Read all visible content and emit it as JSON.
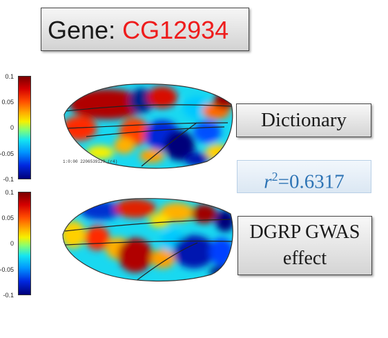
{
  "title": {
    "prefix": "Gene: ",
    "gene_id": "CG12934"
  },
  "labels": {
    "dictionary": "Dictionary",
    "r2_symbol": "r",
    "r2_exp": "2",
    "r2_value": "=0.6317",
    "gwas_line1": "DGRP GWAS",
    "gwas_line2": "effect"
  },
  "colorbar_top": {
    "ticks": [
      "0.1",
      "0.05",
      "0",
      "-0.05",
      "-0.1"
    ]
  },
  "colorbar_bottom": {
    "ticks": [
      "0.1",
      "0.05",
      "0",
      "-0.05",
      "-0.1"
    ]
  },
  "wing_top_caption": "1:0:00  2206539129 (r4)",
  "colors": {
    "gene_red": "#ee1c1c",
    "r2_blue": "#2e74b5"
  }
}
